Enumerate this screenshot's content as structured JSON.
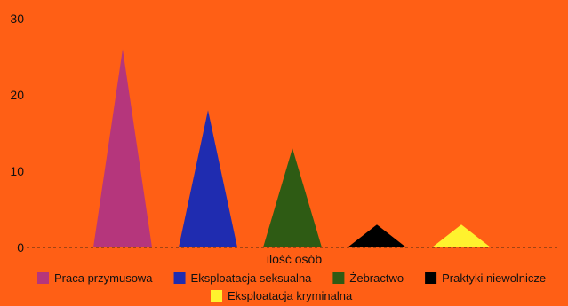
{
  "background": "#FF5F15",
  "chart_data": {
    "type": "bar",
    "bar_shape": "triangle",
    "x_category_label": "ilość osób",
    "ylim": [
      0,
      30
    ],
    "yticks": [
      0,
      10,
      20,
      30
    ],
    "grid": false,
    "baseline_style": "dashed",
    "legend_position": "bottom",
    "series": [
      {
        "name": "Praca przymusowa",
        "value": 26,
        "color": "#B5367C"
      },
      {
        "name": "Eksploatacja seksualna",
        "value": 18,
        "color": "#1F2CB0"
      },
      {
        "name": "Żebractwo",
        "value": 13,
        "color": "#2E5B14"
      },
      {
        "name": "Praktyki niewolnicze",
        "value": 3,
        "color": "#000000"
      },
      {
        "name": "Eksploatacja kryminalna",
        "value": 3,
        "color": "#FFF22E"
      }
    ]
  }
}
